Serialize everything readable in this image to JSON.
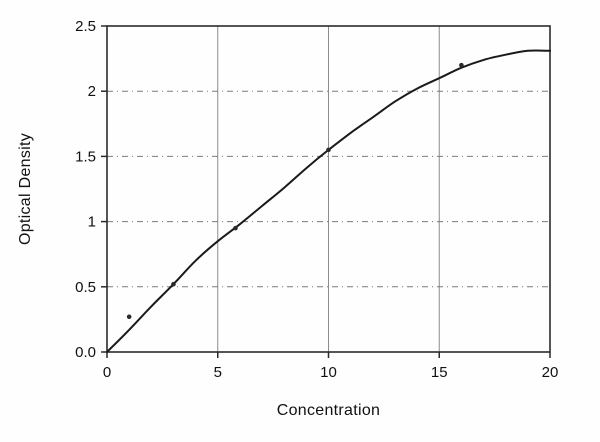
{
  "chart_data": {
    "type": "line",
    "title": "",
    "xlabel": "Concentration",
    "ylabel": "Optical Density",
    "xlim": [
      0,
      20
    ],
    "ylim": [
      0,
      2.5
    ],
    "xticks": [
      {
        "v": 0,
        "label": "0"
      },
      {
        "v": 5,
        "label": "5"
      },
      {
        "v": 10,
        "label": "10"
      },
      {
        "v": 15,
        "label": "15"
      },
      {
        "v": 20,
        "label": "20"
      }
    ],
    "yticks": [
      {
        "v": 0,
        "label": "0.0"
      },
      {
        "v": 0.5,
        "label": "0.5"
      },
      {
        "v": 1,
        "label": "1"
      },
      {
        "v": 1.5,
        "label": "1.5"
      },
      {
        "v": 2,
        "label": "2"
      },
      {
        "v": 2.5,
        "label": "2.5"
      }
    ],
    "grid": {
      "horizontal": "dash-dot",
      "vertical": "solid"
    },
    "legend": "none",
    "series": [
      {
        "name": "fitted-curve",
        "type": "line",
        "x": [
          0,
          1,
          2,
          3,
          4,
          5,
          6,
          7,
          8,
          9,
          10,
          11,
          12,
          13,
          14,
          15,
          16,
          17,
          18,
          19,
          20
        ],
        "y": [
          0.0,
          0.17,
          0.35,
          0.52,
          0.7,
          0.85,
          0.98,
          1.12,
          1.26,
          1.41,
          1.55,
          1.68,
          1.8,
          1.92,
          2.02,
          2.1,
          2.18,
          2.24,
          2.28,
          2.31,
          2.31
        ]
      },
      {
        "name": "data-points",
        "type": "scatter",
        "x": [
          1,
          3,
          5.8,
          10,
          16
        ],
        "y": [
          0.27,
          0.52,
          0.95,
          1.55,
          2.2
        ]
      }
    ],
    "colors": {
      "curve": "#1a1a1a",
      "axis": "#2b2b2b",
      "grid_h": "#7a7a7a",
      "grid_v": "#8c8c8c",
      "marker": "#2b2b2b",
      "background": "#fefefe"
    }
  }
}
